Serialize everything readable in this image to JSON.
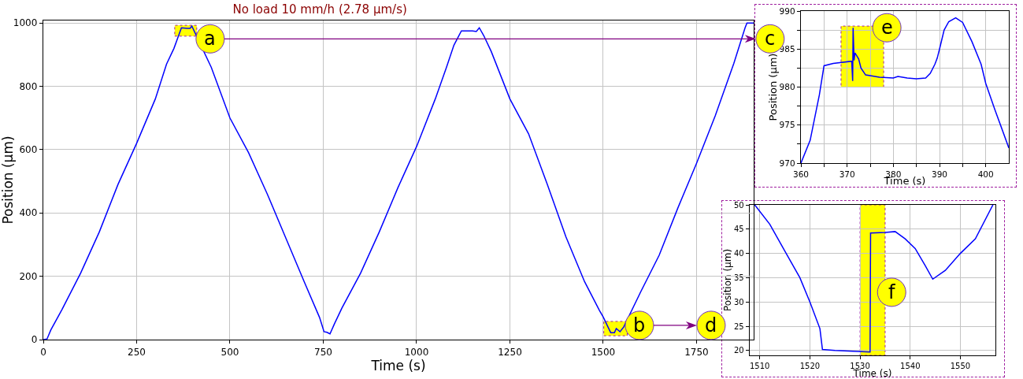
{
  "chart_data": [
    {
      "type": "line",
      "title": "No load 10 mm/h (2.78 µm/s)",
      "xlabel": "Time (s)",
      "ylabel": "Position (µm)",
      "color": "#0000ff",
      "grid": true,
      "xlim": [
        0,
        1903
      ],
      "ylim": [
        0,
        1008
      ],
      "xticks": [
        0,
        250,
        500,
        750,
        1000,
        1250,
        1500,
        1750
      ],
      "yticks": [
        0,
        200,
        400,
        600,
        800,
        1000
      ],
      "x": [
        0,
        10,
        20,
        50,
        100,
        150,
        200,
        250,
        300,
        330,
        350,
        370,
        385,
        393,
        398,
        410,
        450,
        500,
        550,
        600,
        650,
        700,
        740,
        752,
        760,
        768,
        780,
        800,
        850,
        900,
        950,
        1000,
        1050,
        1080,
        1100,
        1120,
        1150,
        1160,
        1168,
        1180,
        1200,
        1250,
        1300,
        1350,
        1400,
        1450,
        1490,
        1500,
        1520,
        1530,
        1535,
        1540,
        1545,
        1555,
        1600,
        1650,
        1700,
        1750,
        1800,
        1850,
        1880,
        1885,
        1903
      ],
      "values": [
        0,
        2,
        30,
        95,
        210,
        340,
        490,
        620,
        760,
        870,
        920,
        985,
        983,
        983,
        990,
        960,
        860,
        700,
        590,
        460,
        320,
        180,
        70,
        25,
        23,
        18,
        50,
        100,
        210,
        340,
        480,
        610,
        760,
        860,
        930,
        975,
        975,
        973,
        985,
        960,
        910,
        760,
        650,
        491,
        325,
        183,
        92,
        71,
        22,
        22,
        35,
        30,
        25,
        40,
        150,
        267,
        416,
        557,
        707,
        873,
        985,
        1000,
        1000
      ],
      "annotations": [
        {
          "text": "a",
          "x": 447,
          "y": 950
        },
        {
          "text": "b",
          "x": 1597,
          "y": 45
        },
        {
          "text": "c",
          "x": 1947,
          "y": 950
        },
        {
          "text": "d",
          "x": 1789,
          "y": 45
        }
      ]
    },
    {
      "type": "line",
      "xlabel": "Time (s)",
      "ylabel": "Position (µm)",
      "color": "#0000ff",
      "grid": true,
      "xlim": [
        360,
        405
      ],
      "ylim": [
        970,
        990
      ],
      "xticks": [
        360,
        {
          "value": 365,
          "label": null
        },
        370,
        {
          "value": 375,
          "label": null
        },
        380,
        {
          "value": 385,
          "label": null
        },
        390,
        {
          "value": 395,
          "label": null
        },
        400
      ],
      "yticks": [
        970,
        {
          "value": 972.5,
          "label": null
        },
        975,
        {
          "value": 977.5,
          "label": null
        },
        980,
        {
          "value": 982.5,
          "label": null
        },
        985,
        {
          "value": 987.5,
          "label": null
        },
        990
      ],
      "x": [
        360,
        362,
        364,
        365,
        367,
        371,
        371.2,
        371.3,
        371.5,
        371.7,
        372.5,
        373,
        374,
        375,
        377,
        380,
        381,
        383,
        385,
        387,
        388,
        389,
        389.5,
        390,
        391,
        392,
        393.5,
        395,
        397,
        399,
        400,
        402,
        405
      ],
      "values": [
        970,
        973,
        979,
        982.8,
        983.1,
        983.4,
        980.8,
        987.8,
        983.5,
        984.5,
        983.7,
        982.5,
        981.6,
        981.5,
        981.3,
        981.2,
        981.4,
        981.2,
        981.1,
        981.2,
        981.8,
        983,
        983.8,
        985,
        987.5,
        988.6,
        989.1,
        988.5,
        986,
        983,
        980.5,
        977,
        972
      ],
      "annotations": [
        {
          "text": "e",
          "x": 378.6,
          "y": 987.8
        }
      ]
    },
    {
      "type": "line",
      "xlabel": "Time (s)",
      "ylabel": "Position (µm)",
      "color": "#0000ff",
      "grid": true,
      "xlim": [
        1508,
        1557
      ],
      "ylim": [
        19,
        50
      ],
      "xticks": [
        1510,
        1520,
        1530,
        1540,
        1550
      ],
      "yticks": [
        20,
        25,
        30,
        35,
        40,
        45,
        50
      ],
      "x": [
        1509,
        1512,
        1515,
        1518,
        1520,
        1522,
        1522.5,
        1525,
        1532,
        1532.1,
        1535,
        1537,
        1539,
        1541,
        1543,
        1544.5,
        1547,
        1550,
        1553,
        1556.5
      ],
      "values": [
        50,
        46,
        40.5,
        35,
        30,
        24.5,
        20.2,
        20,
        19.7,
        44.2,
        44.3,
        44.5,
        43,
        41,
        37.5,
        34.7,
        36.5,
        40,
        43,
        50
      ],
      "bands": [
        {
          "axis": "x",
          "from": 1530,
          "to": 1535,
          "color": "#ffff00"
        }
      ],
      "annotations": [
        {
          "text": "f",
          "x": 1536.3,
          "y": 32
        }
      ]
    }
  ]
}
